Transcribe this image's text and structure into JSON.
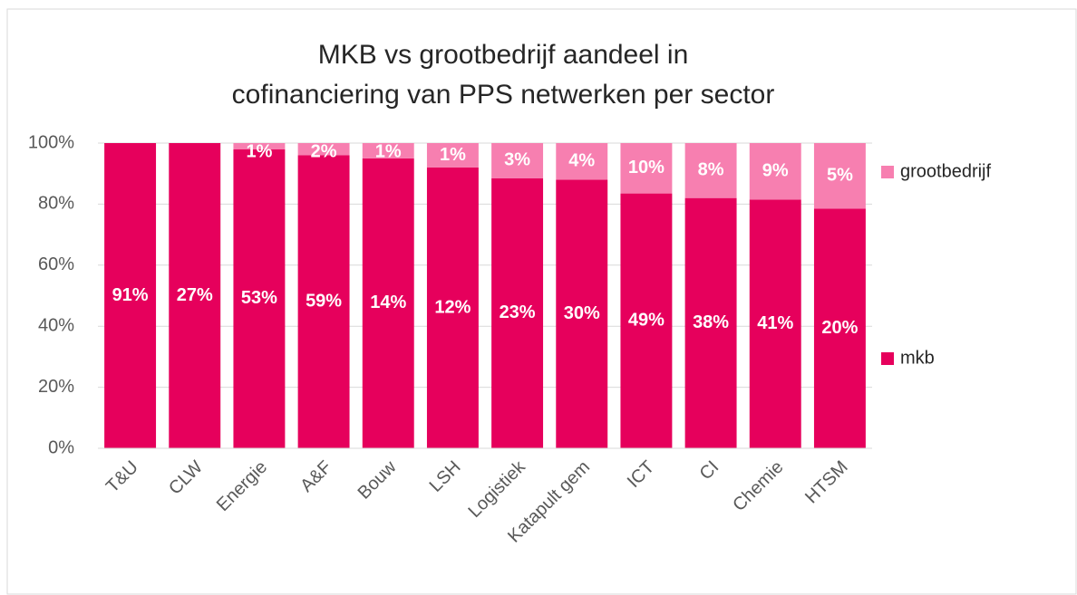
{
  "chart_data": {
    "type": "stacked_bar",
    "title": [
      "MKB vs grootbedrijf aandeel in",
      "cofinanciering  van PPS netwerken per sector"
    ],
    "categories": [
      "T&U",
      "CLW",
      "Energie",
      "A&F",
      "Bouw",
      "LSH",
      "Logistiek",
      "Katapult gem",
      "ICT",
      "CI",
      "Chemie",
      "HTSM"
    ],
    "series": [
      {
        "name": "mkb",
        "color": "#e6005c",
        "values": [
          100,
          100,
          98,
          96,
          95,
          92,
          88.5,
          88,
          83.5,
          82,
          81.5,
          78.5
        ],
        "labels": [
          "91%",
          "27%",
          "53%",
          "59%",
          "14%",
          "12%",
          "23%",
          "30%",
          "49%",
          "38%",
          "41%",
          "20%"
        ]
      },
      {
        "name": "grootbedrijf",
        "color": "#f77fb0",
        "values": [
          0,
          0,
          2,
          4,
          5,
          8,
          11.5,
          12,
          16.5,
          18,
          18.5,
          21.5
        ],
        "labels": [
          null,
          null,
          "1%",
          "2%",
          "1%",
          "1%",
          "3%",
          "4%",
          "10%",
          "8%",
          "9%",
          "5%"
        ]
      }
    ],
    "ylim": [
      0,
      100
    ],
    "yticks": [
      {
        "value": 0,
        "label": "0%"
      },
      {
        "value": 20,
        "label": "20%"
      },
      {
        "value": 40,
        "label": "40%"
      },
      {
        "value": 60,
        "label": "60%"
      },
      {
        "value": 80,
        "label": "80%"
      },
      {
        "value": 100,
        "label": "100%"
      }
    ],
    "grid": true,
    "legend": "right"
  }
}
